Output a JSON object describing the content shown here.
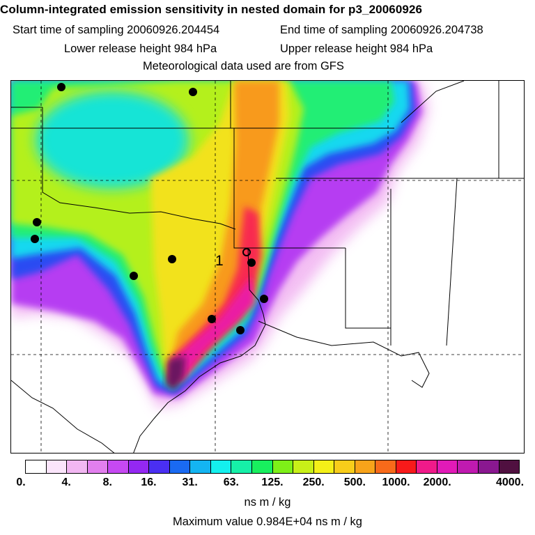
{
  "header": {
    "title": "Column-integrated emission sensitivity in nested domain for p3_20060926",
    "start_sampling": "Start time of sampling 20060926.204454",
    "end_sampling": "End time of sampling 20060926.204738",
    "lower_release": "Lower release height  984 hPa",
    "upper_release": "Upper release height  984 hPa",
    "met_data": "Meteorological data used are from GFS"
  },
  "map": {
    "release_label": "1",
    "land_color": "#ffffff",
    "border_color": "#000000"
  },
  "colorbar": {
    "colors": [
      "#ffffff",
      "#fbe5fb",
      "#f2b7f2",
      "#e27fee",
      "#c649f2",
      "#9428f2",
      "#4a2ff2",
      "#1a6af2",
      "#14b5f2",
      "#14f0ee",
      "#16f0a8",
      "#18ef5e",
      "#7ef018",
      "#c8f018",
      "#f4f018",
      "#f8cd1a",
      "#f8a31a",
      "#f86a1a",
      "#f81a1a",
      "#f01a8a",
      "#e21ab8",
      "#c01ab0",
      "#8a1890",
      "#501040"
    ],
    "tick_labels": [
      "0.",
      "4.",
      "8.",
      "16.",
      "31.",
      "63.",
      "125.",
      "250.",
      "500.",
      "1000.",
      "2000.",
      "4000."
    ],
    "units": "ns m / kg"
  },
  "footer": {
    "max_value": "Maximum value  0.984E+04 ns m / kg"
  }
}
